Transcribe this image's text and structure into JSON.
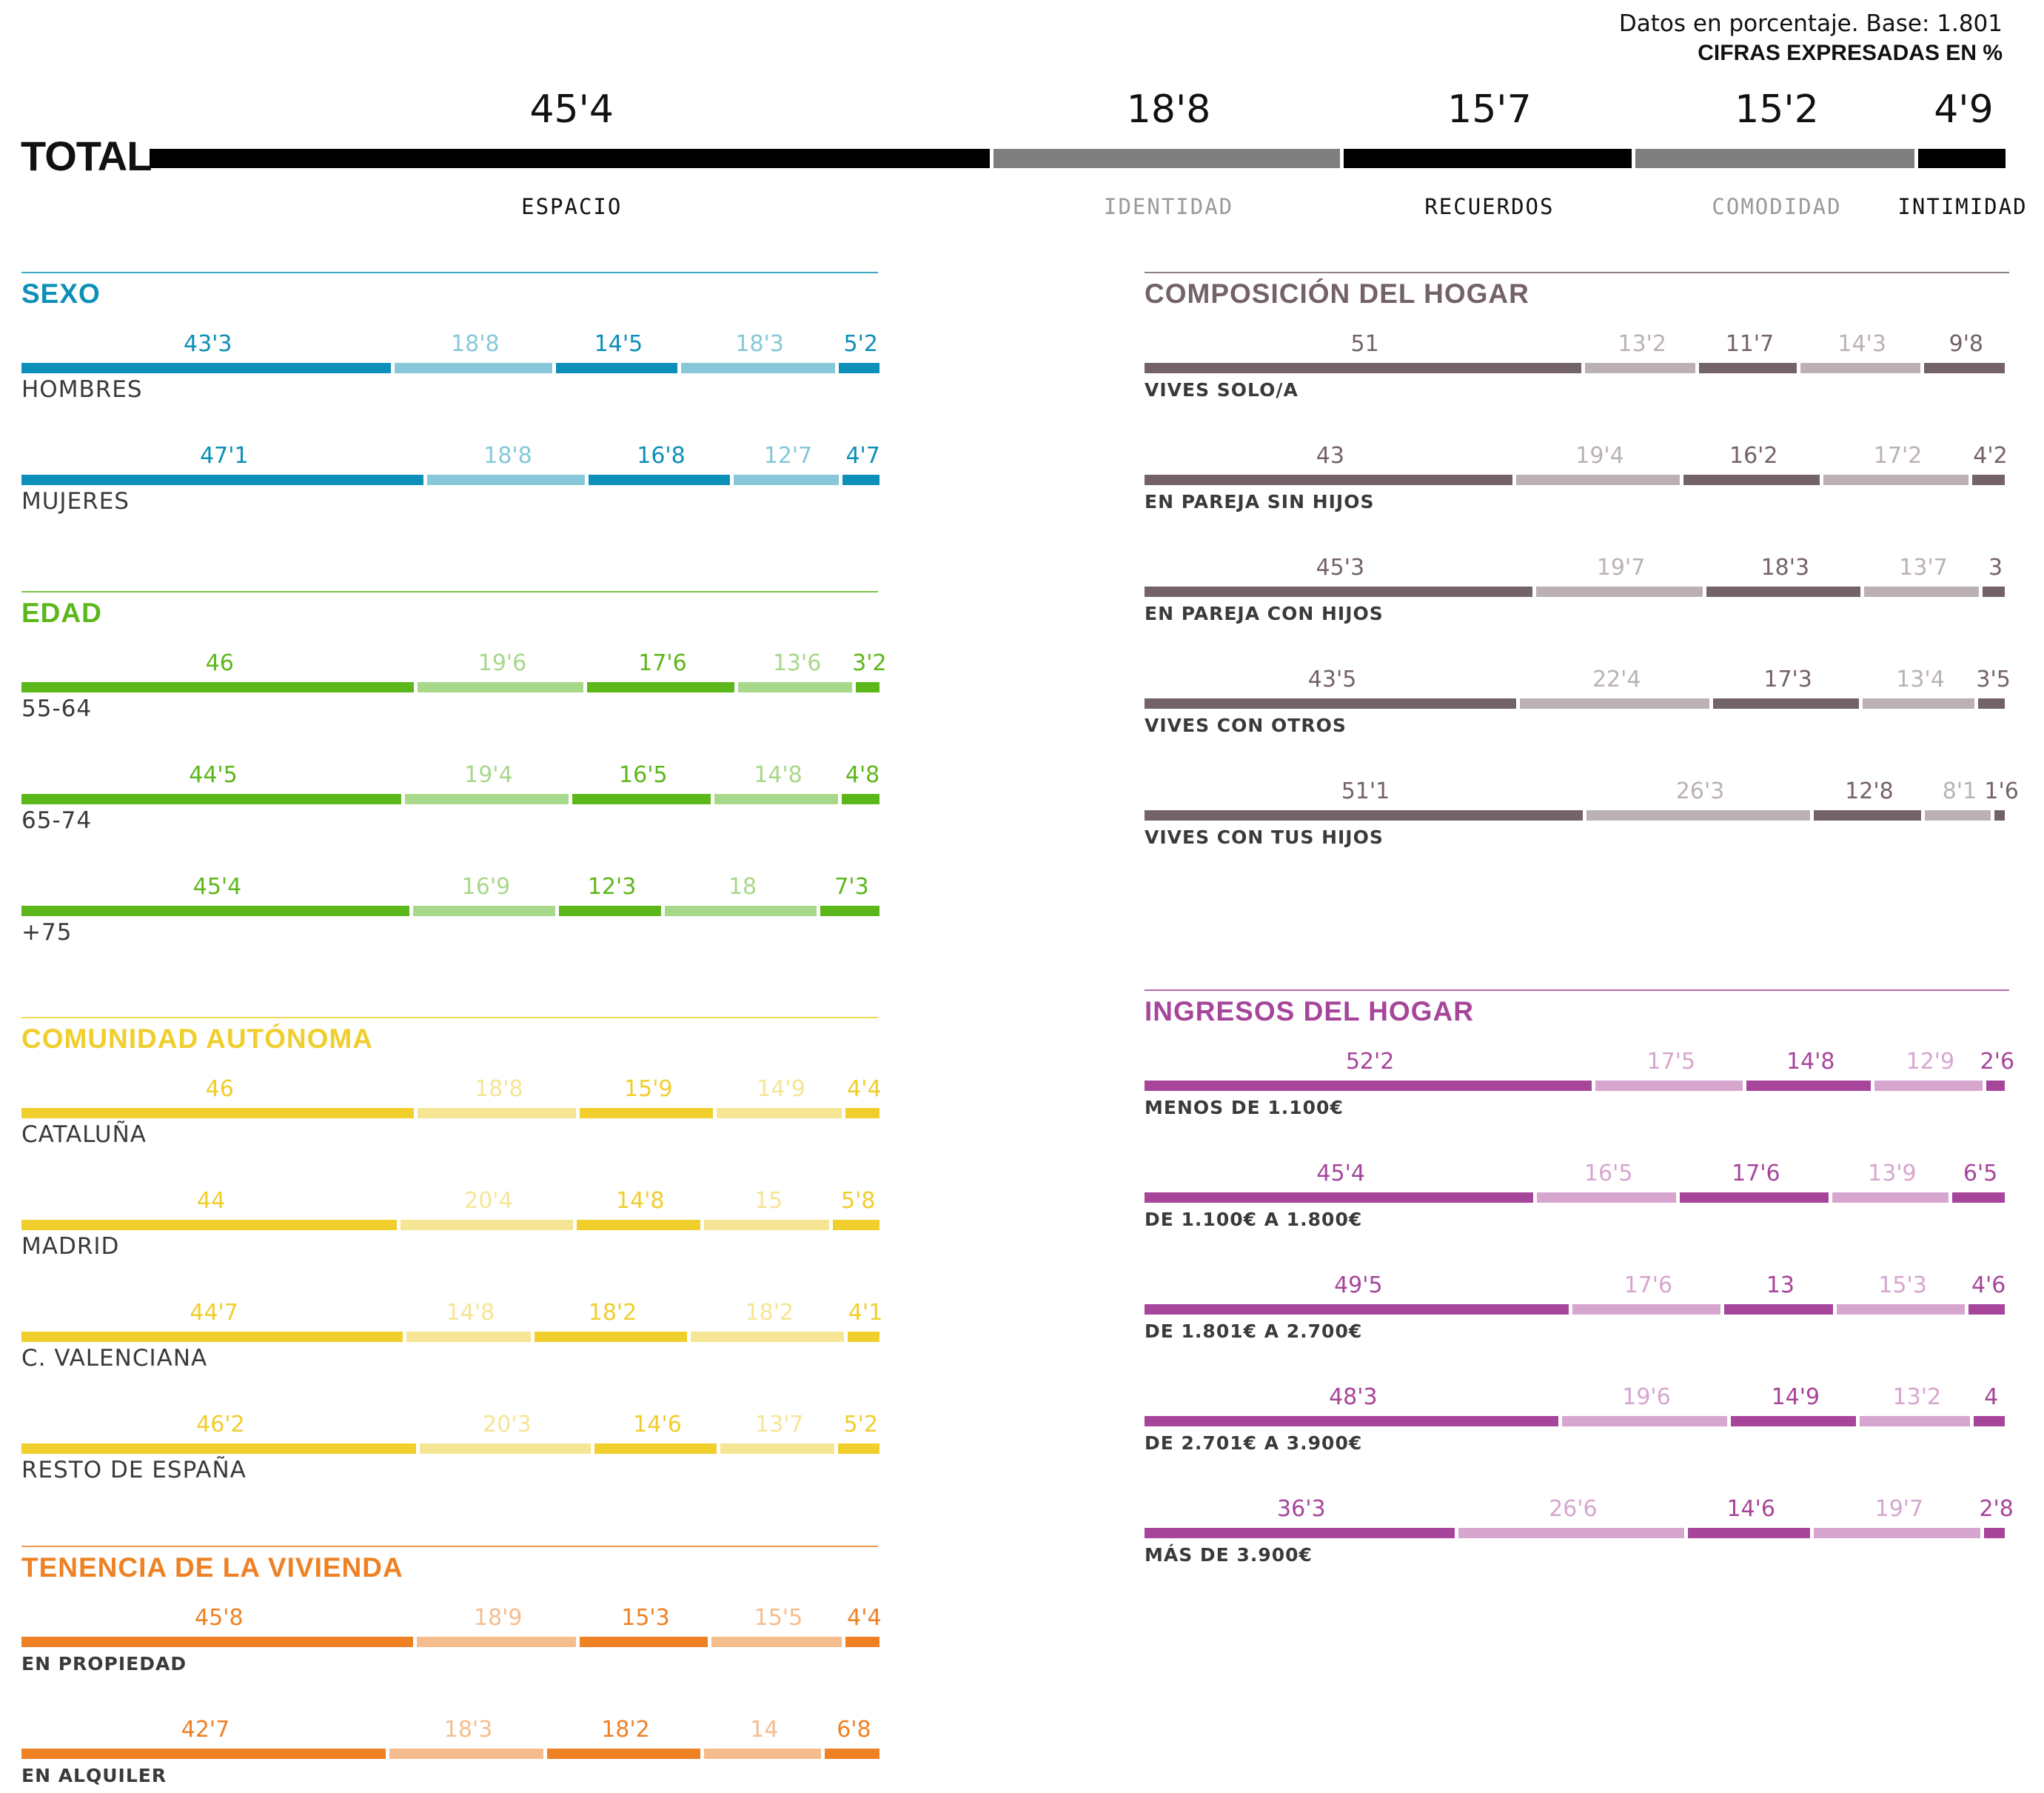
{
  "header": {
    "note_line1": "Datos en porcentaje. Base: 1.801",
    "note_line2": "CIFRAS EXPRESADAS EN %"
  },
  "chart_data": {
    "type": "bar",
    "categories": [
      "ESPACIO",
      "IDENTIDAD",
      "RECUERDOS",
      "COMODIDAD",
      "INTIMIDAD"
    ],
    "colors": {
      "total": [
        "#000000",
        "#7f7f7f"
      ],
      "total_labels": [
        "#111111",
        "#9a9a9a"
      ]
    },
    "total": {
      "label": "TOTAL",
      "values": [
        45.4,
        18.8,
        15.7,
        15.2,
        4.9
      ],
      "value_labels": [
        "45'4",
        "18'8",
        "15'7",
        "15'2",
        "4'9"
      ]
    },
    "groups": [
      {
        "title": "SEXO",
        "column": "left",
        "color_dark": "#0c8fb8",
        "color_light": "#86c8da",
        "row_label_style": "lg",
        "rows": [
          {
            "label": "HOMBRES",
            "values": [
              43.3,
              18.8,
              14.5,
              18.3,
              5.2
            ],
            "value_labels": [
              "43'3",
              "18'8",
              "14'5",
              "18'3",
              "5'2"
            ]
          },
          {
            "label": "MUJERES",
            "values": [
              47.1,
              18.8,
              16.8,
              12.7,
              4.7
            ],
            "value_labels": [
              "47'1",
              "18'8",
              "16'8",
              "12'7",
              "4'7"
            ]
          }
        ]
      },
      {
        "title": "EDAD",
        "column": "left",
        "color_dark": "#5cb71a",
        "color_light": "#a8d88a",
        "row_label_style": "lg",
        "rows": [
          {
            "label": "55-64",
            "values": [
              46,
              19.6,
              17.6,
              13.6,
              3.2
            ],
            "value_labels": [
              "46",
              "19'6",
              "17'6",
              "13'6",
              "3'2"
            ]
          },
          {
            "label": "65-74",
            "values": [
              44.5,
              19.4,
              16.5,
              14.8,
              4.8
            ],
            "value_labels": [
              "44'5",
              "19'4",
              "16'5",
              "14'8",
              "4'8"
            ]
          },
          {
            "label": "+75",
            "values": [
              45.4,
              16.9,
              12.3,
              18,
              7.3
            ],
            "value_labels": [
              "45'4",
              "16'9",
              "12'3",
              "18",
              "7'3"
            ]
          }
        ]
      },
      {
        "title": "COMUNIDAD AUTÓNOMA",
        "column": "left",
        "color_dark": "#f0ce2c",
        "color_light": "#f6e594",
        "row_label_style": "lg",
        "rows": [
          {
            "label": "CATALUÑA",
            "values": [
              46,
              18.8,
              15.9,
              14.9,
              4.4
            ],
            "value_labels": [
              "46",
              "18'8",
              "15'9",
              "14'9",
              "4'4"
            ]
          },
          {
            "label": "MADRID",
            "values": [
              44,
              20.4,
              14.8,
              15,
              5.8
            ],
            "value_labels": [
              "44",
              "20'4",
              "14'8",
              "15",
              "5'8"
            ]
          },
          {
            "label": "C. VALENCIANA",
            "values": [
              44.7,
              14.8,
              18.2,
              18.2,
              4.1
            ],
            "value_labels": [
              "44'7",
              "14'8",
              "18'2",
              "18'2",
              "4'1"
            ]
          },
          {
            "label": "RESTO DE ESPAÑA",
            "values": [
              46.2,
              20.3,
              14.6,
              13.7,
              5.2
            ],
            "value_labels": [
              "46'2",
              "20'3",
              "14'6",
              "13'7",
              "5'2"
            ]
          }
        ]
      },
      {
        "title": "TENENCIA DE LA VIVIENDA",
        "column": "left",
        "color_dark": "#ee8124",
        "color_light": "#f5bd8e",
        "row_label_style": "sm",
        "rows": [
          {
            "label": "EN PROPIEDAD",
            "values": [
              45.8,
              18.9,
              15.3,
              15.5,
              4.4
            ],
            "value_labels": [
              "45'8",
              "18'9",
              "15'3",
              "15'5",
              "4'4"
            ]
          },
          {
            "label": "EN ALQUILER",
            "values": [
              42.7,
              18.3,
              18.2,
              14,
              6.8
            ],
            "value_labels": [
              "42'7",
              "18'3",
              "18'2",
              "14",
              "6'8"
            ]
          }
        ]
      },
      {
        "title": "COMPOSICIÓN DEL HOGAR",
        "column": "right",
        "color_dark": "#746269",
        "color_light": "#bbb1b4",
        "row_label_style": "sm",
        "rows": [
          {
            "label": "VIVES SOLO/A",
            "values": [
              51,
              13.2,
              11.7,
              14.3,
              9.8
            ],
            "value_labels": [
              "51",
              "13'2",
              "11'7",
              "14'3",
              "9'8"
            ]
          },
          {
            "label": "EN PAREJA SIN HIJOS",
            "values": [
              43,
              19.4,
              16.2,
              17.2,
              4.2
            ],
            "value_labels": [
              "43",
              "19'4",
              "16'2",
              "17'2",
              "4'2"
            ]
          },
          {
            "label": "EN PAREJA CON HIJOS",
            "values": [
              45.3,
              19.7,
              18.3,
              13.7,
              3
            ],
            "value_labels": [
              "45'3",
              "19'7",
              "18'3",
              "13'7",
              "3"
            ]
          },
          {
            "label": "VIVES CON OTROS",
            "values": [
              43.5,
              22.4,
              17.3,
              13.4,
              3.5
            ],
            "value_labels": [
              "43'5",
              "22'4",
              "17'3",
              "13'4",
              "3'5"
            ]
          },
          {
            "label": "VIVES CON TUS HIJOS",
            "values": [
              51.1,
              26.3,
              12.8,
              8.1,
              1.6
            ],
            "value_labels": [
              "51'1",
              "26'3",
              "12'8",
              "8'1",
              "1'6"
            ]
          }
        ]
      },
      {
        "title": "INGRESOS DEL HOGAR",
        "column": "right",
        "color_dark": "#a6459a",
        "color_light": "#d7a6cf",
        "row_label_style": "sm",
        "rows": [
          {
            "label": "MENOS DE 1.100€",
            "values": [
              52.2,
              17.5,
              14.8,
              12.9,
              2.6
            ],
            "value_labels": [
              "52'2",
              "17'5",
              "14'8",
              "12'9",
              "2'6"
            ]
          },
          {
            "label": "DE 1.100€ A 1.800€",
            "values": [
              45.4,
              16.5,
              17.6,
              13.9,
              6.5
            ],
            "value_labels": [
              "45'4",
              "16'5",
              "17'6",
              "13'9",
              "6'5"
            ]
          },
          {
            "label": "DE 1.801€ A 2.700€",
            "values": [
              49.5,
              17.6,
              13,
              15.3,
              4.6
            ],
            "value_labels": [
              "49'5",
              "17'6",
              "13",
              "15'3",
              "4'6"
            ]
          },
          {
            "label": "DE 2.701€ A 3.900€",
            "values": [
              48.3,
              19.6,
              14.9,
              13.2,
              4
            ],
            "value_labels": [
              "48'3",
              "19'6",
              "14'9",
              "13'2",
              "4"
            ]
          },
          {
            "label": "MÁS DE 3.900€",
            "values": [
              36.3,
              26.6,
              14.6,
              19.7,
              2.8
            ],
            "value_labels": [
              "36'3",
              "26'6",
              "14'6",
              "19'7",
              "2'8"
            ]
          }
        ]
      }
    ]
  }
}
